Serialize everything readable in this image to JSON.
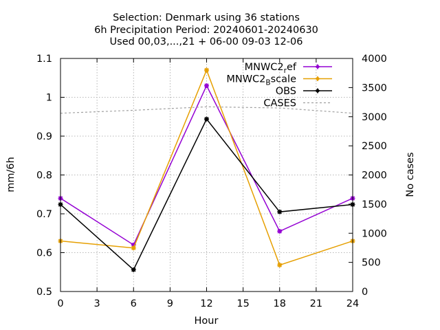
{
  "chart_data": {
    "type": "line",
    "title_lines": [
      "Selection: Denmark using    36 stations",
      "6h Precipitation   Period: 20240601-20240630",
      "Used 00,03,...,21 + 06-00 09-03 12-06"
    ],
    "xlabel": "Hour",
    "ylabel": "mm/6h",
    "y2label": "No cases",
    "xlim": [
      0,
      24
    ],
    "ylim": [
      0.5,
      1.1
    ],
    "y2lim": [
      0,
      4000
    ],
    "xticks": [
      "0",
      "3",
      "6",
      "9",
      "12",
      "15",
      "18",
      "21",
      "24"
    ],
    "yticks": [
      "0.5",
      "0.6",
      "0.7",
      "0.8",
      "0.9",
      "1",
      "1.1"
    ],
    "y2ticks": [
      "0",
      "500",
      "1000",
      "1500",
      "2000",
      "2500",
      "3000",
      "3500",
      "4000"
    ],
    "grid": true,
    "legend_position": "top-right",
    "x": [
      0,
      6,
      12,
      18,
      24
    ],
    "series": [
      {
        "name": "MNWC2_ref",
        "legend_base": "MNWC2",
        "legend_sub": "r",
        "legend_rest": "ef",
        "color": "#9400d3",
        "values": [
          0.74,
          0.62,
          1.03,
          0.655,
          0.74
        ],
        "axis": "y"
      },
      {
        "name": "MNWC2_Bscale",
        "legend_base": "MNWC2",
        "legend_sub": "B",
        "legend_rest": "scale",
        "color": "#e69f00",
        "values": [
          0.63,
          0.612,
          1.07,
          0.568,
          0.63
        ],
        "axis": "y"
      },
      {
        "name": "OBS",
        "legend_base": "OBS",
        "legend_sub": "",
        "legend_rest": "",
        "color": "#000000",
        "values": [
          0.724,
          0.556,
          0.944,
          0.705,
          0.724
        ],
        "axis": "y"
      },
      {
        "name": "CASES",
        "legend_base": "CASES",
        "legend_sub": "",
        "legend_rest": "",
        "color": "#a0a0a0",
        "dashed": true,
        "values": [
          3060,
          3110,
          3170,
          3150,
          3060
        ],
        "axis": "y2"
      }
    ]
  }
}
